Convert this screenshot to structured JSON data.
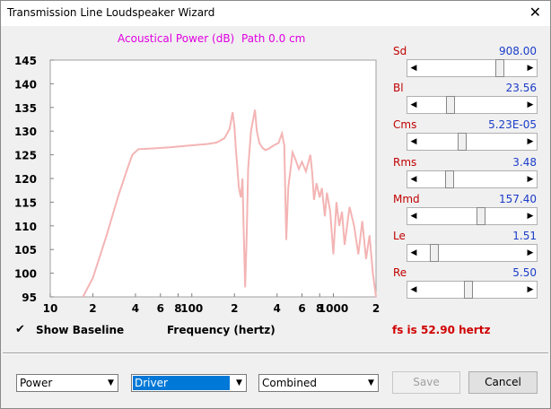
{
  "window": {
    "title": "Transmission Line Loudspeaker Wizard"
  },
  "chart_data": {
    "type": "line",
    "title": "Acoustical Power (dB)",
    "subtitle": "Path 0.0 cm",
    "x_label": "Frequency (hertz)",
    "xscale": "log",
    "grid": false,
    "xlim": [
      10,
      2000
    ],
    "ylim": [
      95,
      145
    ],
    "xticks": [
      10,
      {
        "value": 20,
        "label": "2"
      },
      {
        "value": 40,
        "label": "4"
      },
      {
        "value": 60,
        "label": "6"
      },
      {
        "value": 80,
        "label": "8"
      },
      100,
      {
        "value": 200,
        "label": "2"
      },
      {
        "value": 400,
        "label": "4"
      },
      {
        "value": 600,
        "label": "6"
      },
      {
        "value": 800,
        "label": "8"
      },
      1000,
      {
        "value": 2000,
        "label": "2"
      }
    ],
    "yticks": [
      95,
      100,
      105,
      110,
      115,
      120,
      125,
      130,
      135,
      140,
      145
    ],
    "series": [
      {
        "color": "#f4b4b4",
        "x": [
          17,
          20,
          25,
          30,
          35,
          38,
          42,
          50,
          70,
          100,
          130,
          150,
          170,
          185,
          194,
          200,
          205,
          210,
          215,
          222,
          228,
          232,
          238,
          244,
          250,
          262,
          279,
          288,
          300,
          315,
          330,
          350,
          380,
          410,
          433,
          450,
          465,
          480,
          515,
          540,
          570,
          600,
          640,
          688,
          710,
          730,
          760,
          800,
          830,
          870,
          900,
          950,
          1000,
          1050,
          1100,
          1150,
          1200,
          1300,
          1400,
          1500,
          1600,
          1700,
          1800,
          1900,
          2000
        ],
        "values": [
          95,
          99,
          108,
          116,
          122,
          125,
          126.2,
          126.3,
          126.6,
          127,
          127.3,
          127.6,
          128.5,
          130.5,
          134,
          131,
          126,
          122,
          118,
          116,
          120,
          110,
          97,
          108,
          122,
          130,
          134.5,
          130,
          127.5,
          126.5,
          126,
          126.3,
          127,
          127.5,
          129.5,
          127,
          107,
          118,
          125.5,
          124,
          122,
          123.5,
          121.5,
          125,
          121,
          115.5,
          119,
          116,
          118,
          112,
          117,
          113,
          104,
          115,
          110,
          113,
          106,
          114,
          110,
          104,
          111,
          103,
          108,
          100,
          95
        ]
      }
    ]
  },
  "sliders": [
    {
      "label": "Sd",
      "value": "908.00"
    },
    {
      "label": "Bl",
      "value": "23.56"
    },
    {
      "label": "Cms",
      "value": "5.23E-05"
    },
    {
      "label": "Rms",
      "value": "3.48"
    },
    {
      "label": "Mmd",
      "value": "157.40"
    },
    {
      "label": "Le",
      "value": "1.51"
    },
    {
      "label": "Re",
      "value": "5.50"
    }
  ],
  "baseline": {
    "label": "Show Baseline",
    "checked": true
  },
  "fs_text": "fs is 52.90 hertz",
  "combos": [
    "Power",
    "Driver",
    "Combined"
  ],
  "buttons": {
    "save": "Save",
    "cancel": "Cancel"
  }
}
